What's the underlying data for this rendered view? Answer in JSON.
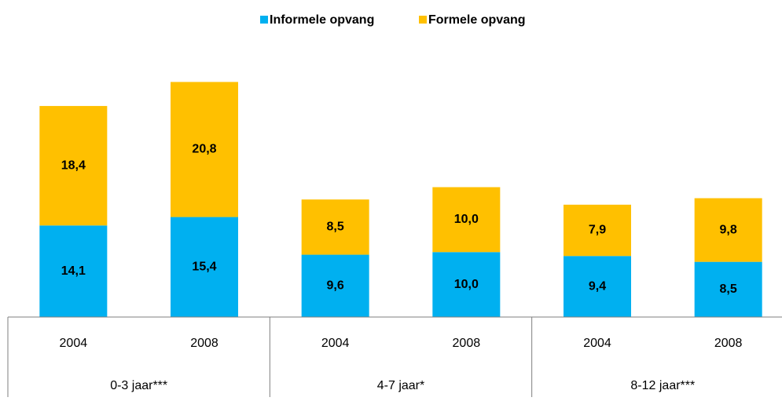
{
  "chart_data": {
    "type": "stacked-bar",
    "categories": [
      "2004",
      "2008",
      "2004",
      "2008",
      "2004",
      "2008"
    ],
    "groups": [
      "0-3 jaar***",
      "4-7 jaar*",
      "8-12 jaar***"
    ],
    "series": [
      {
        "name": "Informele opvang",
        "color": "#00b0f0",
        "values": [
          14.1,
          15.4,
          9.6,
          10.0,
          9.4,
          8.5
        ],
        "value_labels": [
          "14,1",
          "15,4",
          "9,6",
          "10,0",
          "9,4",
          "8,5"
        ]
      },
      {
        "name": "Formele opvang",
        "color": "#ffc000",
        "values": [
          18.4,
          20.8,
          8.5,
          10.0,
          7.9,
          9.8
        ],
        "value_labels": [
          "18,4",
          "20,8",
          "8,5",
          "10,0",
          "7,9",
          "9,8"
        ]
      }
    ],
    "ylim": [
      0,
      40
    ],
    "legend": "top"
  }
}
